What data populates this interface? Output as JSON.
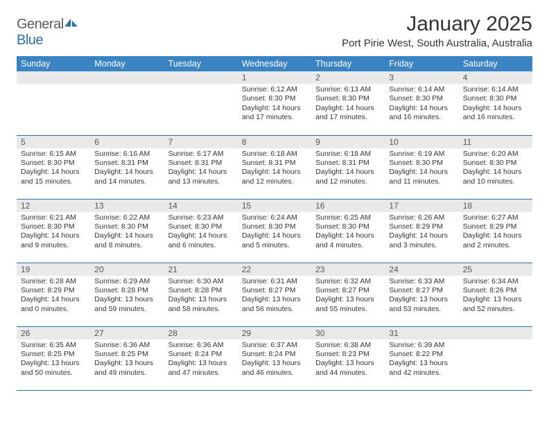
{
  "brand": {
    "part1": "General",
    "part2": "Blue"
  },
  "title": "January 2025",
  "location": "Port Pirie West, South Australia, Australia",
  "colors": {
    "header_bg": "#3b84c4",
    "header_text": "#ffffff",
    "daynum_bg": "#e9e9e9",
    "rule": "#2f6fa8",
    "body_text": "#333333"
  },
  "weekdays": [
    "Sunday",
    "Monday",
    "Tuesday",
    "Wednesday",
    "Thursday",
    "Friday",
    "Saturday"
  ],
  "weeks": [
    [
      {
        "day": "",
        "lines": []
      },
      {
        "day": "",
        "lines": []
      },
      {
        "day": "",
        "lines": []
      },
      {
        "day": "1",
        "lines": [
          "Sunrise: 6:12 AM",
          "Sunset: 8:30 PM",
          "Daylight: 14 hours",
          "and 17 minutes."
        ]
      },
      {
        "day": "2",
        "lines": [
          "Sunrise: 6:13 AM",
          "Sunset: 8:30 PM",
          "Daylight: 14 hours",
          "and 17 minutes."
        ]
      },
      {
        "day": "3",
        "lines": [
          "Sunrise: 6:14 AM",
          "Sunset: 8:30 PM",
          "Daylight: 14 hours",
          "and 16 minutes."
        ]
      },
      {
        "day": "4",
        "lines": [
          "Sunrise: 6:14 AM",
          "Sunset: 8:30 PM",
          "Daylight: 14 hours",
          "and 16 minutes."
        ]
      }
    ],
    [
      {
        "day": "5",
        "lines": [
          "Sunrise: 6:15 AM",
          "Sunset: 8:30 PM",
          "Daylight: 14 hours",
          "and 15 minutes."
        ]
      },
      {
        "day": "6",
        "lines": [
          "Sunrise: 6:16 AM",
          "Sunset: 8:31 PM",
          "Daylight: 14 hours",
          "and 14 minutes."
        ]
      },
      {
        "day": "7",
        "lines": [
          "Sunrise: 6:17 AM",
          "Sunset: 8:31 PM",
          "Daylight: 14 hours",
          "and 13 minutes."
        ]
      },
      {
        "day": "8",
        "lines": [
          "Sunrise: 6:18 AM",
          "Sunset: 8:31 PM",
          "Daylight: 14 hours",
          "and 12 minutes."
        ]
      },
      {
        "day": "9",
        "lines": [
          "Sunrise: 6:18 AM",
          "Sunset: 8:31 PM",
          "Daylight: 14 hours",
          "and 12 minutes."
        ]
      },
      {
        "day": "10",
        "lines": [
          "Sunrise: 6:19 AM",
          "Sunset: 8:30 PM",
          "Daylight: 14 hours",
          "and 11 minutes."
        ]
      },
      {
        "day": "11",
        "lines": [
          "Sunrise: 6:20 AM",
          "Sunset: 8:30 PM",
          "Daylight: 14 hours",
          "and 10 minutes."
        ]
      }
    ],
    [
      {
        "day": "12",
        "lines": [
          "Sunrise: 6:21 AM",
          "Sunset: 8:30 PM",
          "Daylight: 14 hours",
          "and 9 minutes."
        ]
      },
      {
        "day": "13",
        "lines": [
          "Sunrise: 6:22 AM",
          "Sunset: 8:30 PM",
          "Daylight: 14 hours",
          "and 8 minutes."
        ]
      },
      {
        "day": "14",
        "lines": [
          "Sunrise: 6:23 AM",
          "Sunset: 8:30 PM",
          "Daylight: 14 hours",
          "and 6 minutes."
        ]
      },
      {
        "day": "15",
        "lines": [
          "Sunrise: 6:24 AM",
          "Sunset: 8:30 PM",
          "Daylight: 14 hours",
          "and 5 minutes."
        ]
      },
      {
        "day": "16",
        "lines": [
          "Sunrise: 6:25 AM",
          "Sunset: 8:30 PM",
          "Daylight: 14 hours",
          "and 4 minutes."
        ]
      },
      {
        "day": "17",
        "lines": [
          "Sunrise: 6:26 AM",
          "Sunset: 8:29 PM",
          "Daylight: 14 hours",
          "and 3 minutes."
        ]
      },
      {
        "day": "18",
        "lines": [
          "Sunrise: 6:27 AM",
          "Sunset: 8:29 PM",
          "Daylight: 14 hours",
          "and 2 minutes."
        ]
      }
    ],
    [
      {
        "day": "19",
        "lines": [
          "Sunrise: 6:28 AM",
          "Sunset: 8:29 PM",
          "Daylight: 14 hours",
          "and 0 minutes."
        ]
      },
      {
        "day": "20",
        "lines": [
          "Sunrise: 6:29 AM",
          "Sunset: 8:28 PM",
          "Daylight: 13 hours",
          "and 59 minutes."
        ]
      },
      {
        "day": "21",
        "lines": [
          "Sunrise: 6:30 AM",
          "Sunset: 8:28 PM",
          "Daylight: 13 hours",
          "and 58 minutes."
        ]
      },
      {
        "day": "22",
        "lines": [
          "Sunrise: 6:31 AM",
          "Sunset: 8:27 PM",
          "Daylight: 13 hours",
          "and 56 minutes."
        ]
      },
      {
        "day": "23",
        "lines": [
          "Sunrise: 6:32 AM",
          "Sunset: 8:27 PM",
          "Daylight: 13 hours",
          "and 55 minutes."
        ]
      },
      {
        "day": "24",
        "lines": [
          "Sunrise: 6:33 AM",
          "Sunset: 8:27 PM",
          "Daylight: 13 hours",
          "and 53 minutes."
        ]
      },
      {
        "day": "25",
        "lines": [
          "Sunrise: 6:34 AM",
          "Sunset: 8:26 PM",
          "Daylight: 13 hours",
          "and 52 minutes."
        ]
      }
    ],
    [
      {
        "day": "26",
        "lines": [
          "Sunrise: 6:35 AM",
          "Sunset: 8:25 PM",
          "Daylight: 13 hours",
          "and 50 minutes."
        ]
      },
      {
        "day": "27",
        "lines": [
          "Sunrise: 6:36 AM",
          "Sunset: 8:25 PM",
          "Daylight: 13 hours",
          "and 49 minutes."
        ]
      },
      {
        "day": "28",
        "lines": [
          "Sunrise: 6:36 AM",
          "Sunset: 8:24 PM",
          "Daylight: 13 hours",
          "and 47 minutes."
        ]
      },
      {
        "day": "29",
        "lines": [
          "Sunrise: 6:37 AM",
          "Sunset: 8:24 PM",
          "Daylight: 13 hours",
          "and 46 minutes."
        ]
      },
      {
        "day": "30",
        "lines": [
          "Sunrise: 6:38 AM",
          "Sunset: 8:23 PM",
          "Daylight: 13 hours",
          "and 44 minutes."
        ]
      },
      {
        "day": "31",
        "lines": [
          "Sunrise: 6:39 AM",
          "Sunset: 8:22 PM",
          "Daylight: 13 hours",
          "and 42 minutes."
        ]
      },
      {
        "day": "",
        "lines": []
      }
    ]
  ]
}
